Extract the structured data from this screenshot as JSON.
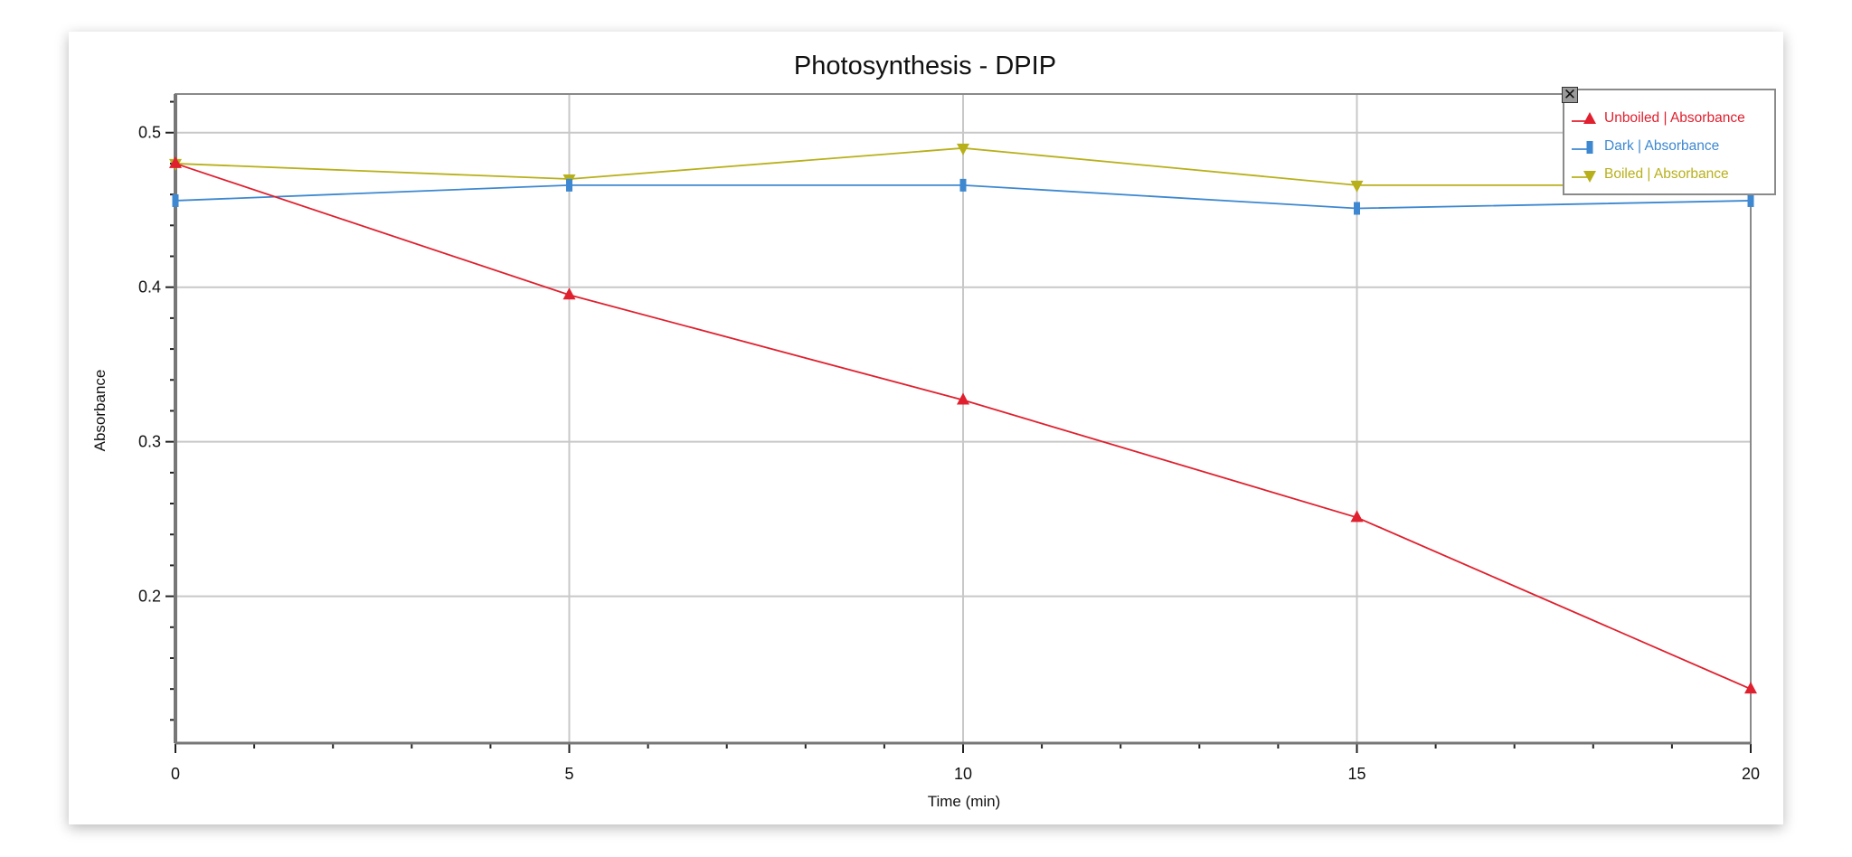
{
  "chart_data": {
    "type": "line",
    "title": "Photosynthesis - DPIP",
    "xlabel": "Time (min)",
    "ylabel": "Absorbance",
    "xlim": [
      0,
      20
    ],
    "ylim": [
      0.105,
      0.525
    ],
    "xticks": [
      0,
      5,
      10,
      15,
      20
    ],
    "xtick_labels": [
      "0",
      "5",
      "10",
      "15",
      "20"
    ],
    "yticks": [
      0.2,
      0.3,
      0.4,
      0.5
    ],
    "ytick_labels": [
      "0.2",
      "0.3",
      "0.4",
      "0.5"
    ],
    "grid": true,
    "legend_position": "top-right",
    "x": [
      0,
      5,
      10,
      15,
      20
    ],
    "series": [
      {
        "name": "Unboiled | Absorbance",
        "color": "#e0202e",
        "marker": "triangle-up",
        "values": [
          0.48,
          0.395,
          0.327,
          0.251,
          0.14
        ]
      },
      {
        "name": "Dark | Absorbance",
        "color": "#3d88d0",
        "marker": "square",
        "values": [
          0.456,
          0.466,
          0.466,
          0.451,
          0.456
        ]
      },
      {
        "name": "Boiled | Absorbance",
        "color": "#b8b01a",
        "marker": "triangle-down",
        "values": [
          0.48,
          0.47,
          0.49,
          0.466,
          0.466
        ]
      }
    ]
  },
  "legend": {
    "close_icon": "close-icon",
    "close_label": "✕"
  }
}
